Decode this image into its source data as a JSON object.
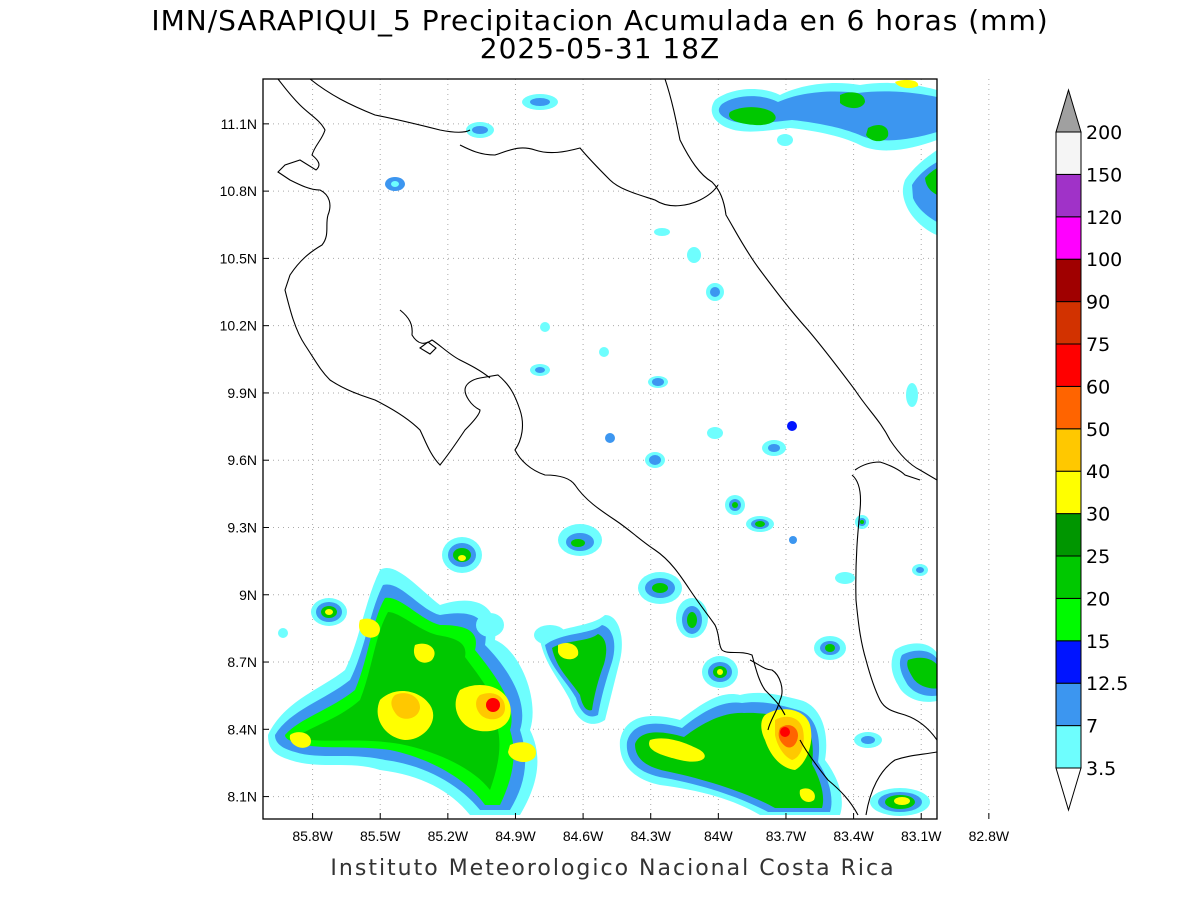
{
  "title": {
    "line1": "IMN/SARAPIQUI_5 Precipitacion Acumulada en 6 horas (mm)",
    "line2": "2025-05-31 18Z"
  },
  "footer": "Instituto Meteorologico Nacional Costa Rica",
  "map": {
    "lon_range": [
      -86.02,
      -83.03
    ],
    "lat_range": [
      8.0,
      11.3
    ],
    "lon_ticks": [
      {
        "v": -85.8,
        "label": "85.8W"
      },
      {
        "v": -85.5,
        "label": "85.5W"
      },
      {
        "v": -85.2,
        "label": "85.2W"
      },
      {
        "v": -84.9,
        "label": "84.9W"
      },
      {
        "v": -84.6,
        "label": "84.6W"
      },
      {
        "v": -84.3,
        "label": "84.3W"
      },
      {
        "v": -84.0,
        "label": "84W"
      },
      {
        "v": -83.7,
        "label": "83.7W"
      },
      {
        "v": -83.4,
        "label": "83.4W"
      },
      {
        "v": -83.1,
        "label": "83.1W"
      },
      {
        "v": -82.8,
        "label": "82.8W"
      }
    ],
    "lat_ticks": [
      {
        "v": 11.1,
        "label": "11.1N"
      },
      {
        "v": 10.8,
        "label": "10.8N"
      },
      {
        "v": 10.5,
        "label": "10.5N"
      },
      {
        "v": 10.2,
        "label": "10.2N"
      },
      {
        "v": 9.9,
        "label": "9.9N"
      },
      {
        "v": 9.6,
        "label": "9.6N"
      },
      {
        "v": 9.3,
        "label": "9.3N"
      },
      {
        "v": 9.0,
        "label": "9N"
      },
      {
        "v": 8.7,
        "label": "8.7N"
      },
      {
        "v": 8.4,
        "label": "8.4N"
      },
      {
        "v": 8.1,
        "label": "8.1N"
      }
    ],
    "grid": "dotted"
  },
  "colorbar": {
    "labels": [
      "3.5",
      "7",
      "12.5",
      "15",
      "20",
      "25",
      "30",
      "40",
      "50",
      "60",
      "75",
      "90",
      "100",
      "120",
      "150",
      "200"
    ],
    "colors": [
      "#6efefe",
      "#3c96f0",
      "#0014ff",
      "#00fa00",
      "#00c800",
      "#009600",
      "#ffff00",
      "#ffc800",
      "#ff6400",
      "#ff0000",
      "#d23200",
      "#a00000",
      "#ff00ff",
      "#a032c8",
      "#f5f5f5"
    ],
    "over_color": "#a0a0a0",
    "under_color": "#ffffff"
  }
}
